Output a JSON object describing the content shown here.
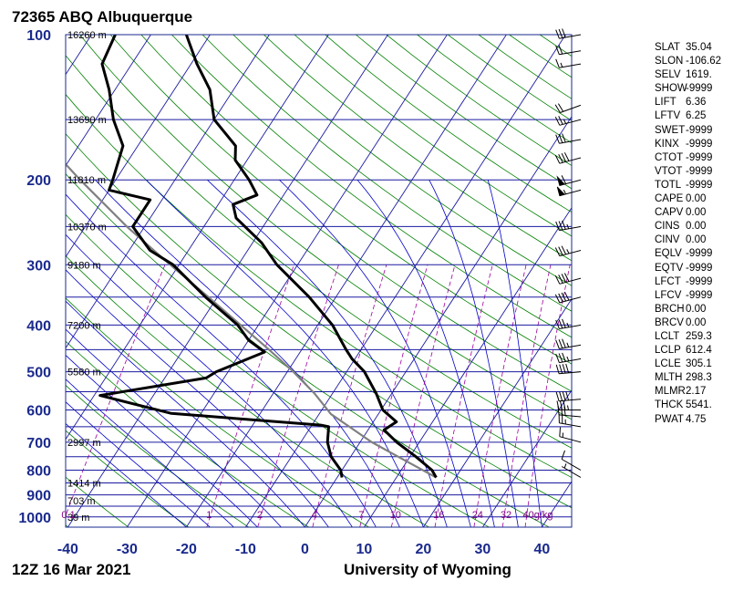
{
  "header": {
    "title": "72365 ABQ Albuquerque"
  },
  "footer": {
    "timestamp": "12Z 16 Mar 2021",
    "source": "University of Wyoming"
  },
  "colors": {
    "isobar": "#1a1aa0",
    "isotherm": "#1a1aa0",
    "dry_adiabat": "#008000",
    "moist_adiabat": "#0000c8",
    "mixing_ratio": "#a000a0",
    "temperature": "#000000",
    "dewpoint": "#000000",
    "parcel": "#808080",
    "frame": "#1a2a8c",
    "label": "#1a2a8c"
  },
  "indices": [
    {
      "key": "SLAT",
      "value": "35.04"
    },
    {
      "key": "SLON",
      "value": "-106.62"
    },
    {
      "key": "SELV",
      "value": "1619."
    },
    {
      "key": "SHOW",
      "value": "-9999"
    },
    {
      "key": "LIFT",
      "value": "6.36"
    },
    {
      "key": "LFTV",
      "value": "6.25"
    },
    {
      "key": "SWET",
      "value": "-9999"
    },
    {
      "key": "KINX",
      "value": "-9999"
    },
    {
      "key": "CTOT",
      "value": "-9999"
    },
    {
      "key": "VTOT",
      "value": "-9999"
    },
    {
      "key": "TOTL",
      "value": "-9999"
    },
    {
      "key": "CAPE",
      "value": "0.00"
    },
    {
      "key": "CAPV",
      "value": "0.00"
    },
    {
      "key": "CINS",
      "value": "0.00"
    },
    {
      "key": "CINV",
      "value": "0.00"
    },
    {
      "key": "EQLV",
      "value": "-9999"
    },
    {
      "key": "EQTV",
      "value": "-9999"
    },
    {
      "key": "LFCT",
      "value": "-9999"
    },
    {
      "key": "LFCV",
      "value": "-9999"
    },
    {
      "key": "BRCH",
      "value": "0.00"
    },
    {
      "key": "BRCV",
      "value": "0.00"
    },
    {
      "key": "LCLT",
      "value": "259.3"
    },
    {
      "key": "LCLP",
      "value": "612.4"
    },
    {
      "key": "LCLE",
      "value": "305.1"
    },
    {
      "key": "MLTH",
      "value": "298.3"
    },
    {
      "key": "MLMR",
      "value": "2.17"
    },
    {
      "key": "THCK",
      "value": "5541."
    },
    {
      "key": "PWAT",
      "value": "4.75"
    }
  ],
  "chart_data": {
    "type": "skew-T log-P sounding",
    "title": "72365 ABQ Albuquerque",
    "x_label": "",
    "x_ticks": [
      "-40",
      "-30",
      "-20",
      "-10",
      "0",
      "10",
      "20",
      "30",
      "40"
    ],
    "x_tick_values": [
      -40,
      -30,
      -20,
      -10,
      0,
      10,
      20,
      30,
      40
    ],
    "y_ticks": [
      "100",
      "200",
      "300",
      "400",
      "500",
      "600",
      "700",
      "800",
      "900",
      "1000"
    ],
    "y_tick_values": [
      100,
      200,
      300,
      400,
      500,
      600,
      700,
      800,
      900,
      1000
    ],
    "p_range": [
      100,
      1050
    ],
    "t_range_at_surface": [
      -40,
      45
    ],
    "y_scale": "log",
    "isobars": [
      100,
      150,
      200,
      250,
      300,
      350,
      400,
      450,
      500,
      550,
      600,
      650,
      700,
      750,
      800,
      850,
      900,
      950,
      1000
    ],
    "height_labels": [
      {
        "p": 100,
        "label": "16260 m"
      },
      {
        "p": 150,
        "label": "13690 m"
      },
      {
        "p": 200,
        "label": "11810 m"
      },
      {
        "p": 250,
        "label": "10370 m"
      },
      {
        "p": 300,
        "label": "9180 m"
      },
      {
        "p": 400,
        "label": "7200 m"
      },
      {
        "p": 500,
        "label": "5580 m"
      },
      {
        "p": 700,
        "label": "2997 m"
      },
      {
        "p": 850,
        "label": "1414 m"
      },
      {
        "p": 925,
        "label": "703 m"
      },
      {
        "p": 1000,
        "label": "39 m"
      }
    ],
    "mixing_ratio_labels": [
      "0.1",
      "1",
      "2",
      "4",
      "7",
      "10",
      "16",
      "24",
      "32",
      "40g/kg"
    ],
    "mixing_ratio_values": [
      0.1,
      1,
      2,
      4,
      7,
      10,
      16,
      24,
      32,
      40
    ],
    "temperature": [
      {
        "p": 828,
        "t": 16.7
      },
      {
        "p": 800,
        "t": 15.2
      },
      {
        "p": 750,
        "t": 11.0
      },
      {
        "p": 700,
        "t": 6.2
      },
      {
        "p": 660,
        "t": 2.7
      },
      {
        "p": 635,
        "t": 3.9
      },
      {
        "p": 600,
        "t": 0.3
      },
      {
        "p": 555,
        "t": -2.6
      },
      {
        "p": 500,
        "t": -7.0
      },
      {
        "p": 470,
        "t": -10.5
      },
      {
        "p": 450,
        "t": -12.5
      },
      {
        "p": 400,
        "t": -17.5
      },
      {
        "p": 350,
        "t": -24.5
      },
      {
        "p": 300,
        "t": -33.5
      },
      {
        "p": 270,
        "t": -38.5
      },
      {
        "p": 240,
        "t": -45.5
      },
      {
        "p": 225,
        "t": -47.5
      },
      {
        "p": 215,
        "t": -44.5
      },
      {
        "p": 200,
        "t": -47.5
      },
      {
        "p": 182,
        "t": -52.0
      },
      {
        "p": 170,
        "t": -53.5
      },
      {
        "p": 150,
        "t": -60.0
      },
      {
        "p": 130,
        "t": -64.0
      },
      {
        "p": 115,
        "t": -69.0
      },
      {
        "p": 100,
        "t": -74.0
      }
    ],
    "dewpoint": [
      {
        "p": 828,
        "t": 0.8
      },
      {
        "p": 800,
        "t": -0.2
      },
      {
        "p": 750,
        "t": -3.3
      },
      {
        "p": 700,
        "t": -5.5
      },
      {
        "p": 650,
        "t": -7.0
      },
      {
        "p": 645,
        "t": -8.5
      },
      {
        "p": 610,
        "t": -35.0
      },
      {
        "p": 560,
        "t": -49.0
      },
      {
        "p": 515,
        "t": -33.0
      },
      {
        "p": 500,
        "t": -32.0
      },
      {
        "p": 455,
        "t": -26.0
      },
      {
        "p": 430,
        "t": -30.0
      },
      {
        "p": 400,
        "t": -33.5
      },
      {
        "p": 350,
        "t": -42.0
      },
      {
        "p": 300,
        "t": -51.0
      },
      {
        "p": 280,
        "t": -56.5
      },
      {
        "p": 250,
        "t": -62.0
      },
      {
        "p": 220,
        "t": -62.0
      },
      {
        "p": 210,
        "t": -70.0
      },
      {
        "p": 200,
        "t": -70.5
      },
      {
        "p": 170,
        "t": -72.5
      },
      {
        "p": 150,
        "t": -77.0
      },
      {
        "p": 130,
        "t": -81.0
      },
      {
        "p": 115,
        "t": -85.0
      },
      {
        "p": 100,
        "t": -86.0
      }
    ],
    "parcel": [
      {
        "p": 828,
        "t": 16.7
      },
      {
        "p": 750,
        "t": 8.0
      },
      {
        "p": 700,
        "t": 2.0
      },
      {
        "p": 650,
        "t": -3.5
      },
      {
        "p": 612,
        "t": -8.0
      },
      {
        "p": 555,
        "t": -13.0
      },
      {
        "p": 500,
        "t": -19.0
      },
      {
        "p": 450,
        "t": -25.5
      },
      {
        "p": 400,
        "t": -33.0
      },
      {
        "p": 350,
        "t": -41.5
      },
      {
        "p": 300,
        "t": -51.5
      },
      {
        "p": 250,
        "t": -63.0
      },
      {
        "p": 200,
        "t": -76.0
      },
      {
        "p": 150,
        "t": -92.0
      },
      {
        "p": 100,
        "t": -112.0
      }
    ],
    "wind_barbs": [
      {
        "p": 828,
        "dir": 300,
        "spd": 5
      },
      {
        "p": 800,
        "dir": 300,
        "spd": 10
      },
      {
        "p": 700,
        "dir": 285,
        "spd": 15
      },
      {
        "p": 650,
        "dir": 280,
        "spd": 25
      },
      {
        "p": 620,
        "dir": 275,
        "spd": 30
      },
      {
        "p": 600,
        "dir": 270,
        "spd": 35
      },
      {
        "p": 570,
        "dir": 265,
        "spd": 40
      },
      {
        "p": 500,
        "dir": 265,
        "spd": 40
      },
      {
        "p": 470,
        "dir": 260,
        "spd": 35
      },
      {
        "p": 440,
        "dir": 260,
        "spd": 35
      },
      {
        "p": 400,
        "dir": 260,
        "spd": 35
      },
      {
        "p": 350,
        "dir": 255,
        "spd": 40
      },
      {
        "p": 320,
        "dir": 255,
        "spd": 40
      },
      {
        "p": 280,
        "dir": 255,
        "spd": 35
      },
      {
        "p": 250,
        "dir": 260,
        "spd": 35
      },
      {
        "p": 210,
        "dir": 255,
        "spd": 55
      },
      {
        "p": 200,
        "dir": 255,
        "spd": 60
      },
      {
        "p": 180,
        "dir": 255,
        "spd": 40
      },
      {
        "p": 165,
        "dir": 260,
        "spd": 30
      },
      {
        "p": 150,
        "dir": 255,
        "spd": 25
      },
      {
        "p": 140,
        "dir": 250,
        "spd": 20
      },
      {
        "p": 115,
        "dir": 260,
        "spd": 15
      },
      {
        "p": 108,
        "dir": 260,
        "spd": 20
      },
      {
        "p": 100,
        "dir": 260,
        "spd": 30
      }
    ]
  }
}
